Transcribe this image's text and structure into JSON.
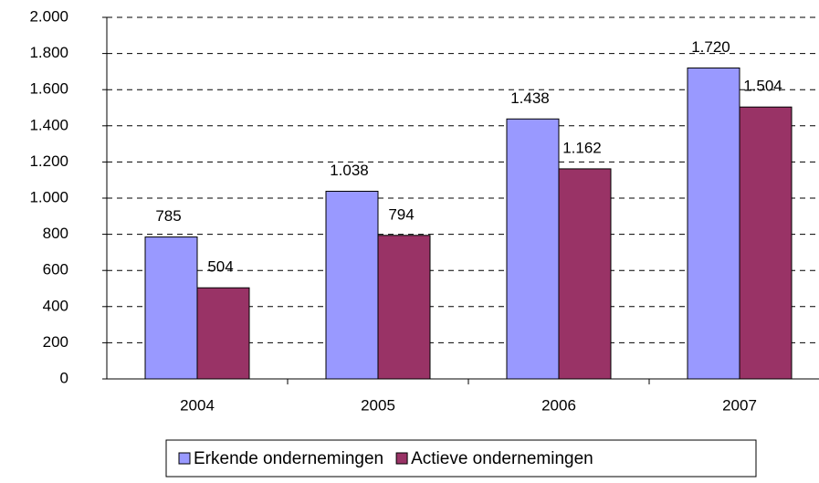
{
  "chart_data": {
    "type": "bar",
    "categories": [
      "2004",
      "2005",
      "2006",
      "2007"
    ],
    "series": [
      {
        "name": "Erkende ondernemingen",
        "color": "#9999ff",
        "values": [
          785,
          1038,
          1438,
          1720
        ],
        "value_labels": [
          "785",
          "1.038",
          "1.438",
          "1.720"
        ]
      },
      {
        "name": "Actieve ondernemingen",
        "color": "#993366",
        "values": [
          504,
          794,
          1162,
          1504
        ],
        "value_labels": [
          "504",
          "794",
          "1.162",
          "1.504"
        ]
      }
    ],
    "ylim": [
      0,
      2000
    ],
    "yticks": [
      0,
      200,
      400,
      600,
      800,
      {
        "value": 1000,
        "label": "1.000"
      },
      {
        "value": 1200,
        "label": "1.200"
      },
      {
        "value": 1400,
        "label": "1.400"
      },
      {
        "value": 1600,
        "label": "1.600"
      },
      {
        "value": 1800,
        "label": "1.800"
      },
      {
        "value": 2000,
        "label": "2.000"
      }
    ],
    "grid": true,
    "legend": "bottom"
  }
}
